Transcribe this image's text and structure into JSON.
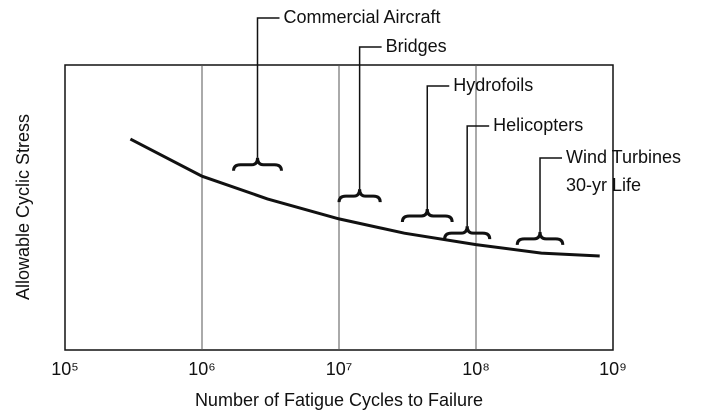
{
  "chart_data": {
    "type": "line",
    "x_label": "Number of Fatigue Cycles to Failure",
    "y_label": "Allowable Cyclic Stress",
    "log_x": true,
    "xlim": [
      100000,
      1000000000
    ],
    "xticks": [
      {
        "value": 100000,
        "label": "10⁵"
      },
      {
        "value": 1000000,
        "label": "10⁶"
      },
      {
        "value": 10000000,
        "label": "10⁷"
      },
      {
        "value": 100000000,
        "label": "10⁸"
      },
      {
        "value": 1000000000,
        "label": "10⁹"
      }
    ],
    "ylim": [
      0,
      10
    ],
    "grid": true,
    "series": [
      {
        "color": "#111111",
        "x": [
          300000,
          1000000,
          3000000,
          10000000,
          30000000,
          100000000,
          300000000,
          800000000
        ],
        "values": [
          7.4,
          6.1,
          5.3,
          4.6,
          4.1,
          3.7,
          3.4,
          3.3
        ]
      }
    ],
    "brackets": [
      {
        "label": [
          "Commercial Aircraft"
        ],
        "x_range": [
          1700000,
          3800000
        ],
        "value": 6.5
      },
      {
        "label": [
          "Bridges"
        ],
        "x_range": [
          10000000,
          20000000
        ],
        "value": 5.4
      },
      {
        "label": [
          "Hydrofoils"
        ],
        "x_range": [
          29000000,
          67000000
        ],
        "value": 4.7
      },
      {
        "label": [
          "Helicopters"
        ],
        "x_range": [
          59000000,
          126000000
        ],
        "value": 4.1
      },
      {
        "label": [
          "Wind Turbines",
          "30-yr Life"
        ],
        "x_range": [
          200000000,
          430000000
        ],
        "value": 3.9
      }
    ]
  }
}
